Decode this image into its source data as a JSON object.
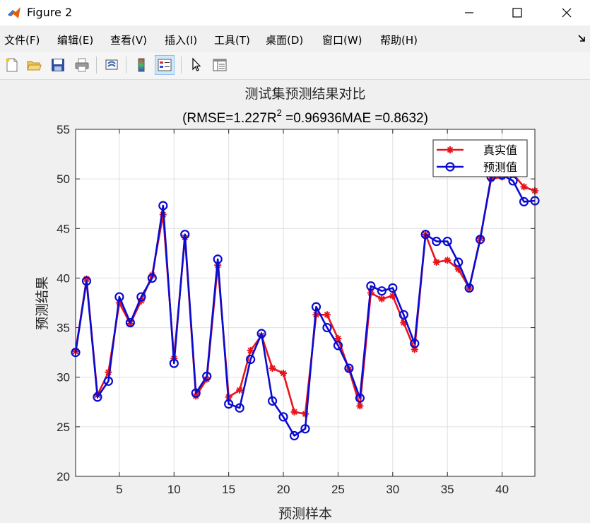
{
  "window": {
    "title": "Figure 2",
    "icons": [
      "matlab-logo-icon",
      "minimize-icon",
      "maximize-icon",
      "close-icon"
    ]
  },
  "menu": [
    "文件(F)",
    "编辑(E)",
    "查看(V)",
    "插入(I)",
    "工具(T)",
    "桌面(D)",
    "窗口(W)",
    "帮助(H)"
  ],
  "toolbar": {
    "buttons": [
      "new-figure-icon",
      "open-file-icon",
      "save-icon",
      "print-icon",
      "link-plot-icon",
      "colorbar-icon",
      "legend-icon",
      "pointer-icon",
      "property-inspector-icon"
    ],
    "active": "legend-icon"
  },
  "chart_data": {
    "type": "line",
    "title": "测试集预测结果对比",
    "subtitle_parts": {
      "pre": "(RMSE=1.227R",
      "sup": "2",
      "post": " =0.96936MAE =0.8632)"
    },
    "xlabel": "预测样本",
    "ylabel": "预测结果",
    "xlim": [
      1,
      43
    ],
    "ylim": [
      20,
      55
    ],
    "xticks": [
      5,
      10,
      15,
      20,
      25,
      30,
      35,
      40
    ],
    "yticks": [
      20,
      25,
      30,
      35,
      40,
      45,
      50,
      55
    ],
    "grid": true,
    "legend_position": "top-right",
    "x": [
      1,
      2,
      3,
      4,
      5,
      6,
      7,
      8,
      9,
      10,
      11,
      12,
      13,
      14,
      15,
      16,
      17,
      18,
      19,
      20,
      21,
      22,
      23,
      24,
      25,
      26,
      27,
      28,
      29,
      30,
      31,
      32,
      33,
      34,
      35,
      36,
      37,
      38,
      39,
      40,
      41,
      42,
      43
    ],
    "series": [
      {
        "name": "真实值",
        "color": "#e8141c",
        "marker": "star",
        "values": [
          32.6,
          39.9,
          28.2,
          30.5,
          37.5,
          35.4,
          37.7,
          40.3,
          46.4,
          31.9,
          44.1,
          28.1,
          29.8,
          41.3,
          28.0,
          28.7,
          32.7,
          34.2,
          30.9,
          30.4,
          26.5,
          26.3,
          36.3,
          36.3,
          33.9,
          30.8,
          27.1,
          38.5,
          37.9,
          38.2,
          35.5,
          32.8,
          44.4,
          41.6,
          41.8,
          40.9,
          39.0,
          44.0,
          50.0,
          50.2,
          50.5,
          49.2,
          48.8
        ]
      },
      {
        "name": "预测值",
        "color": "#0b0bd1",
        "marker": "circle",
        "values": [
          32.5,
          39.7,
          28.0,
          29.6,
          38.1,
          35.5,
          38.1,
          40.0,
          47.3,
          31.4,
          44.4,
          28.4,
          30.1,
          41.9,
          27.3,
          26.9,
          31.8,
          34.4,
          27.6,
          26.0,
          24.1,
          24.8,
          37.1,
          35.0,
          33.2,
          30.9,
          27.9,
          39.2,
          38.7,
          39.0,
          36.3,
          33.4,
          44.4,
          43.7,
          43.7,
          41.6,
          39.0,
          43.9,
          50.2,
          50.4,
          49.8,
          47.7,
          47.8
        ]
      }
    ]
  }
}
